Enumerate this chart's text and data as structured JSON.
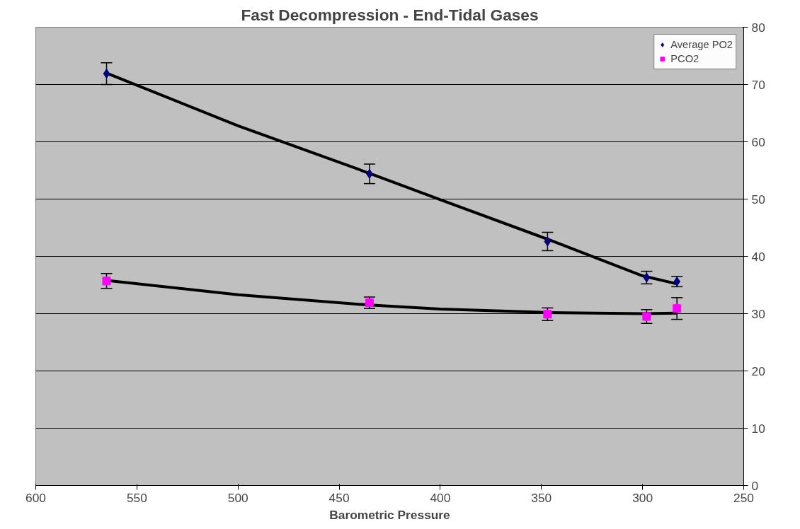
{
  "chart_data": {
    "type": "scatter",
    "title": "Fast Decompression - End-Tidal Gases",
    "xlabel": "Barometric Pressure",
    "x": [
      565,
      435,
      347,
      298,
      283
    ],
    "series": [
      {
        "name": "Average PO2",
        "color": "#000080",
        "marker": "diamond",
        "values": [
          71.9,
          54.4,
          42.6,
          36.3,
          35.6
        ],
        "errors": [
          1.9,
          1.7,
          1.6,
          1.1,
          0.9
        ]
      },
      {
        "name": "PCO2",
        "color": "#ff00ff",
        "marker": "square",
        "values": [
          35.7,
          31.9,
          29.9,
          29.5,
          30.9
        ],
        "errors": [
          1.3,
          1.0,
          1.1,
          1.2,
          1.9
        ]
      },
      {
        "type": "line",
        "color": "#000000",
        "x": [
          565,
          500,
          435,
          400,
          347,
          300,
          283
        ],
        "values": [
          72.0,
          62.8,
          54.5,
          49.9,
          43.0,
          36.6,
          35.2
        ]
      },
      {
        "type": "line",
        "color": "#000000",
        "x": [
          565,
          500,
          435,
          400,
          347,
          300,
          283
        ],
        "values": [
          35.8,
          33.3,
          31.5,
          30.8,
          30.2,
          30.0,
          30.1
        ]
      }
    ],
    "xlim": [
      600,
      250
    ],
    "xticks": [
      600,
      550,
      500,
      450,
      400,
      350,
      300,
      250
    ],
    "ylim": [
      0,
      80
    ],
    "yticks": [
      0,
      10,
      20,
      30,
      40,
      50,
      60,
      70,
      80
    ],
    "grid": "y",
    "legend": "top right"
  }
}
